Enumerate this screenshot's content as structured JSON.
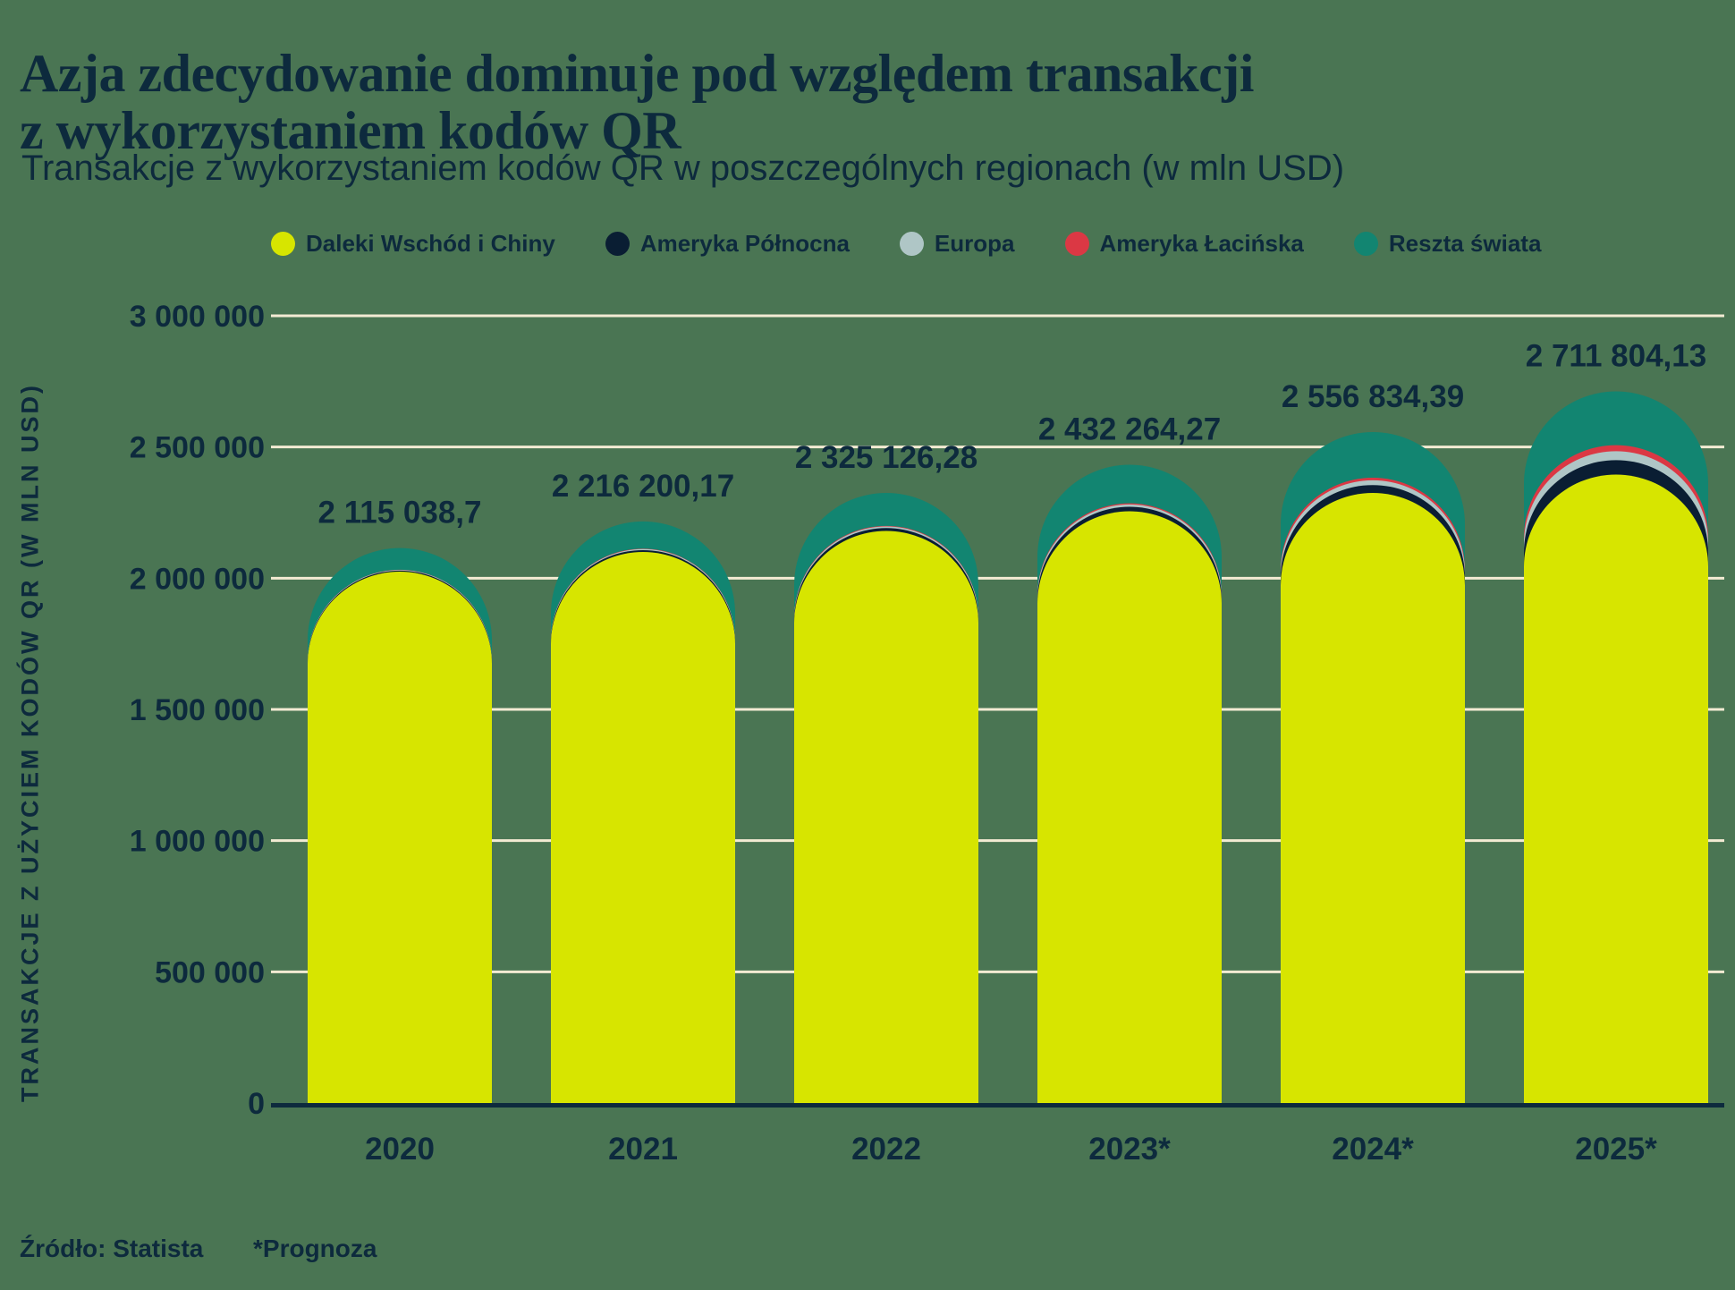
{
  "header": {
    "title_line1": "Azja zdecydowanie dominuje pod względem transakcji",
    "title_line2": "z wykorzystaniem kodów QR",
    "subtitle": "Transakcje z wykorzystaniem kodów QR w poszczególnych regionach (w mln USD)"
  },
  "legend": {
    "items": [
      {
        "label": "Daleki Wschód i Chiny",
        "color": "#D7E500"
      },
      {
        "label": "Ameryka Północna",
        "color": "#0A1E33"
      },
      {
        "label": "Europa",
        "color": "#AFC6C6"
      },
      {
        "label": "Ameryka Łacińska",
        "color": "#DB3844"
      },
      {
        "label": "Reszta świata",
        "color": "#128571"
      }
    ]
  },
  "axes": {
    "y_title": "TRANSAKCJE Z UŻYCIEM KODÓW QR (W MLN USD)",
    "y_ticks": [
      "3 000 000",
      "2 500 000",
      "2 000 000",
      "1 500 000",
      "1 000 000",
      "500 000",
      "0"
    ],
    "y_tick_values": [
      3000000,
      2500000,
      2000000,
      1500000,
      1000000,
      500000,
      0
    ]
  },
  "footer": {
    "source": "Źródło: Statista",
    "note": "*Prognoza"
  },
  "chart_data": {
    "type": "bar",
    "stacked": true,
    "rounded_top": true,
    "title": "Transakcje z wykorzystaniem kodów QR w poszczególnych regionach (w mln USD)",
    "xlabel": "",
    "ylabel": "TRANSAKCJE Z UŻYCIEM KODÓW QR (W MLN USD)",
    "ylim": [
      0,
      3000000
    ],
    "grid": true,
    "grid_color": "#F3EBD3",
    "legend_position": "top",
    "background_color": "#4A7553",
    "categories": [
      "2020",
      "2021",
      "2022",
      "2023*",
      "2024*",
      "2025*"
    ],
    "series": [
      {
        "name": "Daleki Wschód i Chiny",
        "color": "#D7E500",
        "values": [
          2025000,
          2100000,
          2180000,
          2255000,
          2325000,
          2395000
        ]
      },
      {
        "name": "Ameryka Północna",
        "color": "#0A1E33",
        "values": [
          4000,
          7000,
          11000,
          17000,
          30000,
          55000
        ]
      },
      {
        "name": "Europa",
        "color": "#AFC6C6",
        "values": [
          2500,
          4000,
          6000,
          9000,
          18000,
          34000
        ]
      },
      {
        "name": "Ameryka Łacińska",
        "color": "#DB3844",
        "values": [
          800,
          1500,
          2500,
          4500,
          10000,
          23000
        ]
      },
      {
        "name": "Reszta świata",
        "color": "#128571",
        "values": [
          82738.7,
          103700.17,
          125626.28,
          146764.27,
          173834.39,
          204804.13
        ]
      }
    ],
    "totals": [
      2115038.7,
      2216200.17,
      2325126.28,
      2432264.27,
      2556834.39,
      2711804.13
    ],
    "total_labels": [
      "2 115 038,7",
      "2 216 200,17",
      "2 325 126,28",
      "2 432 264,27",
      "2 556 834,39",
      "2 711 804,13"
    ],
    "note": "Wartości serii (poza sumami) oszacowane z wysokości słupków"
  }
}
